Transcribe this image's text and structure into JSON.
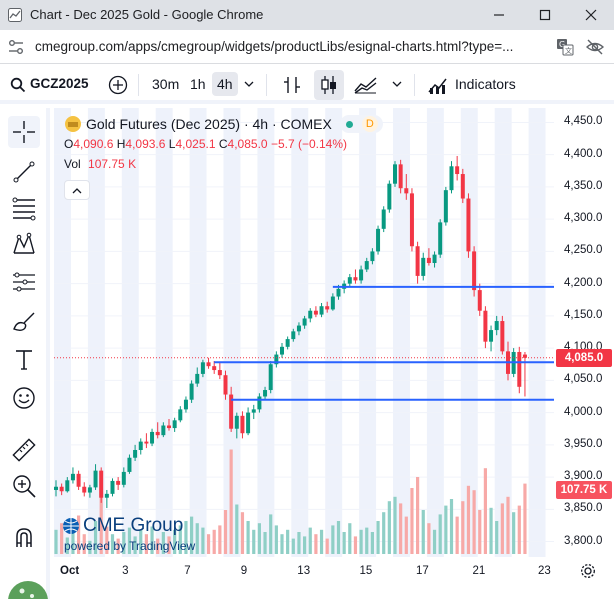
{
  "window": {
    "title": "Chart - Dec 2025 Gold - Google Chrome",
    "url": "cmegroup.com/apps/cmegroup/widgets/productLibs/esignal-charts.html?type=..."
  },
  "toolbar": {
    "symbol": "GCZ2025",
    "intervals": [
      "30m",
      "1h",
      "4h"
    ],
    "active_interval": "4h",
    "indicators_label": "Indicators"
  },
  "legend": {
    "title": "Gold Futures (Dec 2025) · 4h · COMEX",
    "market_badge": "D",
    "open_label": "O",
    "open": "4,090.6",
    "high_label": "H",
    "high": "4,093.6",
    "low_label": "L",
    "low": "4,025.1",
    "close_label": "C",
    "close": "4,085.0",
    "change": "−5.7 (−0.14%)",
    "vol_label": "Vol",
    "vol_value": "107.75 K"
  },
  "branding": {
    "logo_text": "CME Group",
    "powered_by": "powered by TradingView"
  },
  "colors": {
    "up": "#089981",
    "down": "#f23645",
    "vol_up": "#8fcfc6",
    "vol_down": "#f7a9a7",
    "trendline": "#2962ff",
    "session_band": "#eef2fb",
    "last_price": "#f23645"
  },
  "price_axis": {
    "ticks": [
      "4,450.0",
      "4,400.0",
      "4,350.0",
      "4,300.0",
      "4,250.0",
      "4,200.0",
      "4,150.0",
      "4,100.0",
      "4,050.0",
      "4,000.0",
      "3,950.0",
      "3,900.0",
      "3,850.0",
      "3,800.0"
    ],
    "last_price_tag": "4,085.0",
    "volume_tag": "107.75 K"
  },
  "time_axis": {
    "ticks": [
      "Oct",
      "3",
      "7",
      "9",
      "13",
      "15",
      "17",
      "21",
      "23"
    ]
  },
  "chart_data": {
    "type": "candlestick",
    "title": "Gold Futures (Dec 2025) · 4h · COMEX",
    "ylim": [
      3790,
      4460
    ],
    "yticks": [
      3800,
      3850,
      3900,
      3950,
      4000,
      4050,
      4100,
      4150,
      4200,
      4250,
      4300,
      4350,
      4400,
      4450
    ],
    "xticks": [
      "Oct",
      "3",
      "7",
      "9",
      "13",
      "15",
      "17",
      "21",
      "23"
    ],
    "horizontal_lines": [
      {
        "price": 4195,
        "from_index": 49,
        "to_index": 999
      },
      {
        "price": 4078,
        "from_index": 28,
        "to_index": 999
      },
      {
        "price": 4020,
        "from_index": 31,
        "to_index": 999
      }
    ],
    "candles": [
      [
        3880,
        3895,
        3870,
        3885
      ],
      [
        3885,
        3890,
        3872,
        3878
      ],
      [
        3878,
        3900,
        3876,
        3895
      ],
      [
        3895,
        3915,
        3890,
        3905
      ],
      [
        3905,
        3910,
        3880,
        3885
      ],
      [
        3885,
        3892,
        3870,
        3876
      ],
      [
        3876,
        3888,
        3868,
        3884
      ],
      [
        3884,
        3920,
        3880,
        3910
      ],
      [
        3910,
        3915,
        3860,
        3868
      ],
      [
        3868,
        3880,
        3852,
        3874
      ],
      [
        3874,
        3898,
        3870,
        3894
      ],
      [
        3894,
        3900,
        3880,
        3888
      ],
      [
        3888,
        3915,
        3884,
        3908
      ],
      [
        3908,
        3935,
        3905,
        3930
      ],
      [
        3930,
        3950,
        3925,
        3942
      ],
      [
        3942,
        3960,
        3935,
        3955
      ],
      [
        3955,
        3968,
        3945,
        3952
      ],
      [
        3952,
        3975,
        3948,
        3970
      ],
      [
        3970,
        3985,
        3960,
        3965
      ],
      [
        3965,
        3985,
        3962,
        3980
      ],
      [
        3980,
        3990,
        3972,
        3976
      ],
      [
        3976,
        3992,
        3970,
        3988
      ],
      [
        3988,
        4010,
        3985,
        4005
      ],
      [
        4005,
        4025,
        4000,
        4020
      ],
      [
        4020,
        4050,
        4015,
        4045
      ],
      [
        4045,
        4070,
        4040,
        4060
      ],
      [
        4060,
        4082,
        4055,
        4078
      ],
      [
        4078,
        4085,
        4068,
        4072
      ],
      [
        4072,
        4080,
        4060,
        4066
      ],
      [
        4066,
        4078,
        4052,
        4058
      ],
      [
        4058,
        4065,
        4020,
        4028
      ],
      [
        4028,
        4040,
        3970,
        3975
      ],
      [
        3975,
        4000,
        3960,
        3995
      ],
      [
        3995,
        4002,
        3960,
        3968
      ],
      [
        3968,
        4008,
        3965,
        4000
      ],
      [
        4000,
        4012,
        3990,
        4005
      ],
      [
        4005,
        4030,
        4000,
        4025
      ],
      [
        4025,
        4040,
        4020,
        4035
      ],
      [
        4035,
        4080,
        4030,
        4075
      ],
      [
        4075,
        4095,
        4070,
        4090
      ],
      [
        4090,
        4108,
        4085,
        4102
      ],
      [
        4102,
        4118,
        4098,
        4114
      ],
      [
        4114,
        4130,
        4110,
        4126
      ],
      [
        4126,
        4140,
        4120,
        4135
      ],
      [
        4135,
        4150,
        4130,
        4146
      ],
      [
        4146,
        4162,
        4140,
        4158
      ],
      [
        4158,
        4165,
        4148,
        4152
      ],
      [
        4152,
        4170,
        4148,
        4165
      ],
      [
        4165,
        4172,
        4155,
        4160
      ],
      [
        4160,
        4185,
        4158,
        4180
      ],
      [
        4180,
        4198,
        4175,
        4192
      ],
      [
        4192,
        4205,
        4185,
        4200
      ],
      [
        4200,
        4215,
        4195,
        4210
      ],
      [
        4210,
        4222,
        4200,
        4205
      ],
      [
        4205,
        4228,
        4200,
        4222
      ],
      [
        4222,
        4240,
        4218,
        4235
      ],
      [
        4235,
        4255,
        4230,
        4250
      ],
      [
        4250,
        4290,
        4245,
        4285
      ],
      [
        4285,
        4320,
        4280,
        4315
      ],
      [
        4315,
        4360,
        4310,
        4355
      ],
      [
        4355,
        4390,
        4350,
        4385
      ],
      [
        4385,
        4392,
        4340,
        4348
      ],
      [
        4348,
        4370,
        4330,
        4340
      ],
      [
        4340,
        4348,
        4250,
        4258
      ],
      [
        4258,
        4265,
        4200,
        4212
      ],
      [
        4212,
        4248,
        4205,
        4240
      ],
      [
        4240,
        4255,
        4228,
        4232
      ],
      [
        4232,
        4250,
        4225,
        4245
      ],
      [
        4245,
        4300,
        4240,
        4295
      ],
      [
        4295,
        4350,
        4290,
        4345
      ],
      [
        4345,
        4390,
        4340,
        4382
      ],
      [
        4382,
        4398,
        4360,
        4370
      ],
      [
        4370,
        4378,
        4325,
        4332
      ],
      [
        4332,
        4340,
        4240,
        4250
      ],
      [
        4250,
        4258,
        4180,
        4190
      ],
      [
        4190,
        4200,
        4150,
        4158
      ],
      [
        4158,
        4165,
        4100,
        4110
      ],
      [
        4110,
        4135,
        4095,
        4128
      ],
      [
        4128,
        4150,
        4120,
        4142
      ],
      [
        4142,
        4150,
        4090,
        4095
      ],
      [
        4095,
        4110,
        4050,
        4060
      ],
      [
        4060,
        4100,
        4055,
        4094
      ],
      [
        4094,
        4102,
        4030,
        4040
      ],
      [
        4090,
        4094,
        4025,
        4085
      ]
    ],
    "volume": [
      [
        22,
        0
      ],
      [
        28,
        1
      ],
      [
        15,
        0
      ],
      [
        20,
        0
      ],
      [
        35,
        1
      ],
      [
        18,
        1
      ],
      [
        12,
        0
      ],
      [
        30,
        0
      ],
      [
        55,
        1
      ],
      [
        25,
        1
      ],
      [
        18,
        0
      ],
      [
        14,
        1
      ],
      [
        20,
        0
      ],
      [
        24,
        0
      ],
      [
        16,
        0
      ],
      [
        22,
        0
      ],
      [
        18,
        1
      ],
      [
        25,
        0
      ],
      [
        14,
        1
      ],
      [
        20,
        0
      ],
      [
        16,
        1
      ],
      [
        22,
        0
      ],
      [
        26,
        0
      ],
      [
        30,
        0
      ],
      [
        34,
        0
      ],
      [
        28,
        0
      ],
      [
        24,
        0
      ],
      [
        18,
        1
      ],
      [
        22,
        1
      ],
      [
        26,
        1
      ],
      [
        40,
        1
      ],
      [
        95,
        1
      ],
      [
        45,
        0
      ],
      [
        38,
        1
      ],
      [
        30,
        0
      ],
      [
        22,
        0
      ],
      [
        28,
        0
      ],
      [
        20,
        0
      ],
      [
        36,
        0
      ],
      [
        26,
        0
      ],
      [
        18,
        0
      ],
      [
        22,
        0
      ],
      [
        14,
        0
      ],
      [
        20,
        0
      ],
      [
        16,
        0
      ],
      [
        24,
        0
      ],
      [
        18,
        1
      ],
      [
        22,
        0
      ],
      [
        14,
        1
      ],
      [
        26,
        0
      ],
      [
        30,
        0
      ],
      [
        20,
        0
      ],
      [
        28,
        0
      ],
      [
        16,
        1
      ],
      [
        22,
        0
      ],
      [
        24,
        0
      ],
      [
        20,
        0
      ],
      [
        30,
        0
      ],
      [
        38,
        0
      ],
      [
        48,
        0
      ],
      [
        52,
        0
      ],
      [
        46,
        1
      ],
      [
        34,
        1
      ],
      [
        60,
        1
      ],
      [
        70,
        1
      ],
      [
        40,
        0
      ],
      [
        28,
        1
      ],
      [
        22,
        0
      ],
      [
        36,
        0
      ],
      [
        44,
        0
      ],
      [
        50,
        0
      ],
      [
        34,
        1
      ],
      [
        48,
        1
      ],
      [
        62,
        1
      ],
      [
        58,
        1
      ],
      [
        40,
        1
      ],
      [
        78,
        1
      ],
      [
        42,
        0
      ],
      [
        30,
        0
      ],
      [
        46,
        1
      ],
      [
        52,
        1
      ],
      [
        38,
        0
      ],
      [
        44,
        1
      ],
      [
        64,
        1
      ]
    ]
  }
}
